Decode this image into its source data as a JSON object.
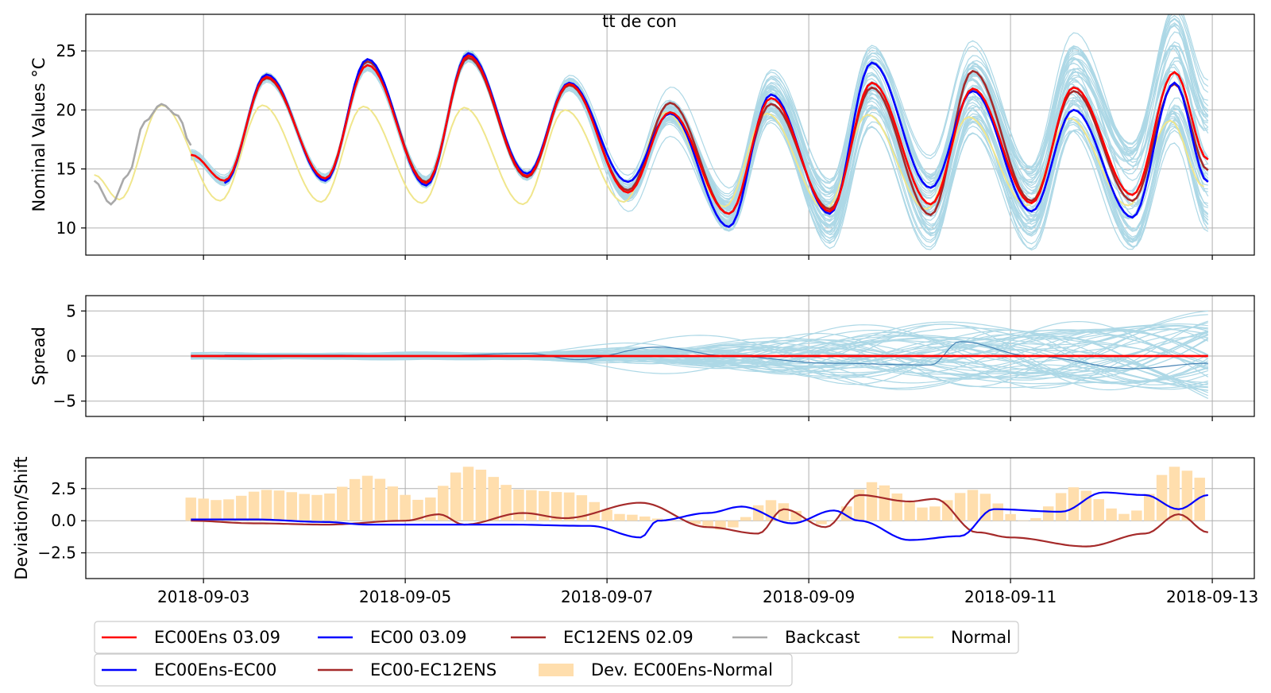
{
  "figure": {
    "title": "tt de con"
  },
  "colors": {
    "ens_member": "#add8e6",
    "ens_mean": "#ff0000",
    "ec00": "#0000ff",
    "ec12": "#a52a2a",
    "backcast": "#a9a9a9",
    "normal": "#f0e68c",
    "dev_bars": "#ffdead",
    "spread_ref": "#4682b4"
  },
  "chart_data": [
    {
      "id": "nominal",
      "type": "line",
      "title": "tt de con",
      "ylabel": "Nominal Values °C",
      "xlim": [
        "2018-09-01T20:00",
        "2018-09-13T10:00"
      ],
      "ylim": [
        7.7,
        28.1
      ],
      "yticks": [
        10,
        15,
        20,
        25
      ],
      "grid": true,
      "series": [
        {
          "name": "Backcast",
          "x": [
            "2018-09-01T22:00",
            "2018-09-02T02:00",
            "2018-09-02T06:00",
            "2018-09-02T10:00",
            "2018-09-02T14:00",
            "2018-09-02T18:00",
            "2018-09-02T21:00"
          ],
          "values": [
            14.0,
            12.0,
            14.5,
            19.0,
            20.5,
            19.5,
            17.0
          ]
        },
        {
          "name": "Normal",
          "x": [
            "2018-09-01T22:00",
            "2018-09-02T04:00",
            "2018-09-02T14:00",
            "2018-09-03T04:00",
            "2018-09-03T14:00",
            "2018-09-04T04:00",
            "2018-09-04T14:00",
            "2018-09-05T04:00",
            "2018-09-05T14:00",
            "2018-09-06T04:00",
            "2018-09-06T14:00",
            "2018-09-07T04:00",
            "2018-09-07T14:00",
            "2018-09-08T04:00",
            "2018-09-08T14:00",
            "2018-09-09T04:00",
            "2018-09-09T14:00",
            "2018-09-10T04:00",
            "2018-09-10T14:00",
            "2018-09-11T04:00",
            "2018-09-11T14:00",
            "2018-09-12T04:00",
            "2018-09-12T14:00",
            "2018-09-12T22:00"
          ],
          "values": [
            14.5,
            12.4,
            20.4,
            12.3,
            20.4,
            12.2,
            20.3,
            12.1,
            20.2,
            12.0,
            20.0,
            12.2,
            19.8,
            11.8,
            19.7,
            11.6,
            19.6,
            11.6,
            19.4,
            11.9,
            19.3,
            11.9,
            19.1,
            13.5
          ]
        },
        {
          "name": "EC00Ens 03.09",
          "x": [
            "2018-09-02T21:00",
            "2018-09-03T05:00",
            "2018-09-03T15:00",
            "2018-09-04T05:00",
            "2018-09-04T15:00",
            "2018-09-05T05:00",
            "2018-09-05T15:00",
            "2018-09-06T05:00",
            "2018-09-06T15:00",
            "2018-09-07T05:00",
            "2018-09-07T15:00",
            "2018-09-08T05:00",
            "2018-09-08T15:00",
            "2018-09-09T05:00",
            "2018-09-09T15:00",
            "2018-09-10T05:00",
            "2018-09-10T15:00",
            "2018-09-11T05:00",
            "2018-09-11T15:00",
            "2018-09-12T05:00",
            "2018-09-12T15:00",
            "2018-09-12T23:00"
          ],
          "values": [
            16.2,
            14.0,
            22.8,
            14.2,
            23.8,
            13.8,
            24.6,
            14.4,
            22.2,
            13.0,
            19.8,
            11.2,
            21.0,
            11.4,
            22.3,
            12.0,
            21.8,
            12.1,
            21.9,
            12.8,
            23.2,
            15.8
          ]
        },
        {
          "name": "EC00 03.09",
          "x": [
            "2018-09-03T05:00",
            "2018-09-03T15:00",
            "2018-09-04T05:00",
            "2018-09-04T15:00",
            "2018-09-05T05:00",
            "2018-09-05T15:00",
            "2018-09-06T05:00",
            "2018-09-06T15:00",
            "2018-09-07T05:00",
            "2018-09-07T15:00",
            "2018-09-08T05:00",
            "2018-09-08T15:00",
            "2018-09-09T05:00",
            "2018-09-09T15:00",
            "2018-09-10T05:00",
            "2018-09-10T15:00",
            "2018-09-11T05:00",
            "2018-09-11T15:00",
            "2018-09-12T05:00",
            "2018-09-12T15:00",
            "2018-09-12T23:00"
          ],
          "values": [
            13.8,
            23.0,
            14.0,
            24.3,
            13.6,
            24.8,
            14.6,
            22.3,
            13.9,
            19.7,
            10.1,
            21.3,
            11.2,
            24.0,
            13.4,
            21.6,
            11.4,
            20.0,
            10.9,
            22.3,
            13.9
          ]
        },
        {
          "name": "EC12ENS 02.09",
          "x": [
            "2018-09-03T05:00",
            "2018-09-03T15:00",
            "2018-09-04T05:00",
            "2018-09-04T15:00",
            "2018-09-05T05:00",
            "2018-09-05T15:00",
            "2018-09-06T05:00",
            "2018-09-06T15:00",
            "2018-09-07T05:00",
            "2018-09-07T15:00",
            "2018-09-08T05:00",
            "2018-09-08T15:00",
            "2018-09-09T05:00",
            "2018-09-09T15:00",
            "2018-09-10T05:00",
            "2018-09-10T15:00",
            "2018-09-11T05:00",
            "2018-09-11T15:00",
            "2018-09-12T05:00",
            "2018-09-12T15:00",
            "2018-09-12T23:00"
          ],
          "values": [
            14.0,
            22.7,
            14.2,
            24.1,
            13.9,
            24.4,
            14.3,
            22.1,
            13.2,
            20.6,
            11.2,
            20.5,
            11.6,
            21.9,
            11.1,
            23.3,
            12.3,
            21.6,
            12.3,
            22.2,
            14.9
          ]
        }
      ]
    },
    {
      "id": "spread",
      "type": "line",
      "ylabel": "Spread",
      "xlim": [
        "2018-09-01T20:00",
        "2018-09-13T10:00"
      ],
      "ylim": [
        -6.7,
        6.7
      ],
      "yticks": [
        -5,
        0,
        5
      ],
      "grid": true,
      "series": [
        {
          "name": "EC00Ens 03.09",
          "x": [
            "2018-09-02T21:00",
            "2018-09-12T23:00"
          ],
          "values": [
            0,
            0
          ]
        },
        {
          "name": "EC12ENS 02.09",
          "x": [
            "2018-09-03T05:00",
            "2018-09-04T05:00",
            "2018-09-05T05:00",
            "2018-09-06T05:00",
            "2018-09-06T17:00",
            "2018-09-07T12:00",
            "2018-09-08T05:00",
            "2018-09-09T05:00",
            "2018-09-10T05:00",
            "2018-09-10T12:00",
            "2018-09-11T05:00",
            "2018-09-12T05:00",
            "2018-09-12T23:00"
          ],
          "values": [
            0.1,
            0.1,
            0.0,
            0.3,
            -0.4,
            1.0,
            0.0,
            -0.8,
            -1.0,
            1.6,
            0.0,
            -1.4,
            -0.8
          ]
        }
      ]
    },
    {
      "id": "deviation",
      "type": "line",
      "ylabel": "Deviation/Shift",
      "xlim": [
        "2018-09-01T20:00",
        "2018-09-13T10:00"
      ],
      "ylim": [
        -4.5,
        4.9
      ],
      "yticks": [
        -2.5,
        0.0,
        2.5
      ],
      "xticks": [
        "2018-09-03",
        "2018-09-05",
        "2018-09-07",
        "2018-09-09",
        "2018-09-11",
        "2018-09-13"
      ],
      "grid": true,
      "series": [
        {
          "name": "EC00Ens-EC00",
          "x": [
            "2018-09-02T21:00",
            "2018-09-03T12:00",
            "2018-09-04T05:00",
            "2018-09-04T15:00",
            "2018-09-05T08:00",
            "2018-09-06T00:00",
            "2018-09-06T20:00",
            "2018-09-07T08:00",
            "2018-09-07T12:00",
            "2018-09-08T00:00",
            "2018-09-08T08:00",
            "2018-09-08T20:00",
            "2018-09-09T06:00",
            "2018-09-09T12:00",
            "2018-09-10T00:00",
            "2018-09-10T12:00",
            "2018-09-10T20:00",
            "2018-09-11T12:00",
            "2018-09-11T22:00",
            "2018-09-12T08:00",
            "2018-09-12T16:00",
            "2018-09-12T23:00"
          ],
          "values": [
            0.1,
            0.1,
            -0.1,
            -0.3,
            -0.3,
            -0.3,
            -0.4,
            -1.3,
            0.0,
            0.6,
            1.1,
            -0.2,
            0.8,
            0.0,
            -1.5,
            -1.2,
            0.9,
            0.7,
            2.2,
            2.0,
            0.9,
            2.0
          ]
        },
        {
          "name": "EC00-EC12ENS",
          "x": [
            "2018-09-02T21:00",
            "2018-09-03T12:00",
            "2018-09-04T05:00",
            "2018-09-05T00:00",
            "2018-09-05T08:00",
            "2018-09-05T14:00",
            "2018-09-06T04:00",
            "2018-09-06T14:00",
            "2018-09-07T08:00",
            "2018-09-08T00:00",
            "2018-09-08T12:00",
            "2018-09-08T18:00",
            "2018-09-09T04:00",
            "2018-09-09T12:00",
            "2018-09-10T00:00",
            "2018-09-10T06:00",
            "2018-09-10T16:00",
            "2018-09-11T00:00",
            "2018-09-11T18:00",
            "2018-09-12T08:00",
            "2018-09-12T16:00",
            "2018-09-12T23:00"
          ],
          "values": [
            0.0,
            -0.2,
            -0.3,
            0.0,
            0.5,
            -0.3,
            0.6,
            0.2,
            1.4,
            -0.5,
            -1.0,
            0.9,
            -0.5,
            2.0,
            1.5,
            1.7,
            -0.9,
            -1.3,
            -2.0,
            -1.0,
            0.5,
            -0.9
          ]
        },
        {
          "name": "Dev. EC00Ens-Normal",
          "x": [
            "2018-09-02T21:00",
            "2018-09-03T04:00",
            "2018-09-03T15:00",
            "2018-09-04T04:00",
            "2018-09-04T15:00",
            "2018-09-05T04:00",
            "2018-09-05T15:00",
            "2018-09-06T04:00",
            "2018-09-06T15:00",
            "2018-09-07T04:00",
            "2018-09-07T15:00",
            "2018-09-08T04:00",
            "2018-09-08T15:00",
            "2018-09-09T04:00",
            "2018-09-09T15:00",
            "2018-09-10T04:00",
            "2018-09-10T15:00",
            "2018-09-11T04:00",
            "2018-09-11T15:00",
            "2018-09-12T04:00",
            "2018-09-12T15:00",
            "2018-09-12T23:00"
          ],
          "values": [
            1.8,
            1.6,
            2.4,
            2.0,
            3.5,
            1.6,
            4.2,
            2.4,
            2.2,
            0.5,
            0.1,
            -0.7,
            1.6,
            -0.3,
            3.0,
            1.0,
            2.4,
            0.0,
            2.6,
            0.5,
            4.2,
            3.2
          ]
        }
      ]
    }
  ],
  "legend_top": [
    "EC00Ens 03.09",
    "EC00 03.09",
    "EC12ENS 02.09",
    "Backcast",
    "Normal"
  ],
  "legend_bottom": [
    "EC00Ens-EC00",
    "EC00-EC12ENS",
    "Dev. EC00Ens-Normal"
  ]
}
